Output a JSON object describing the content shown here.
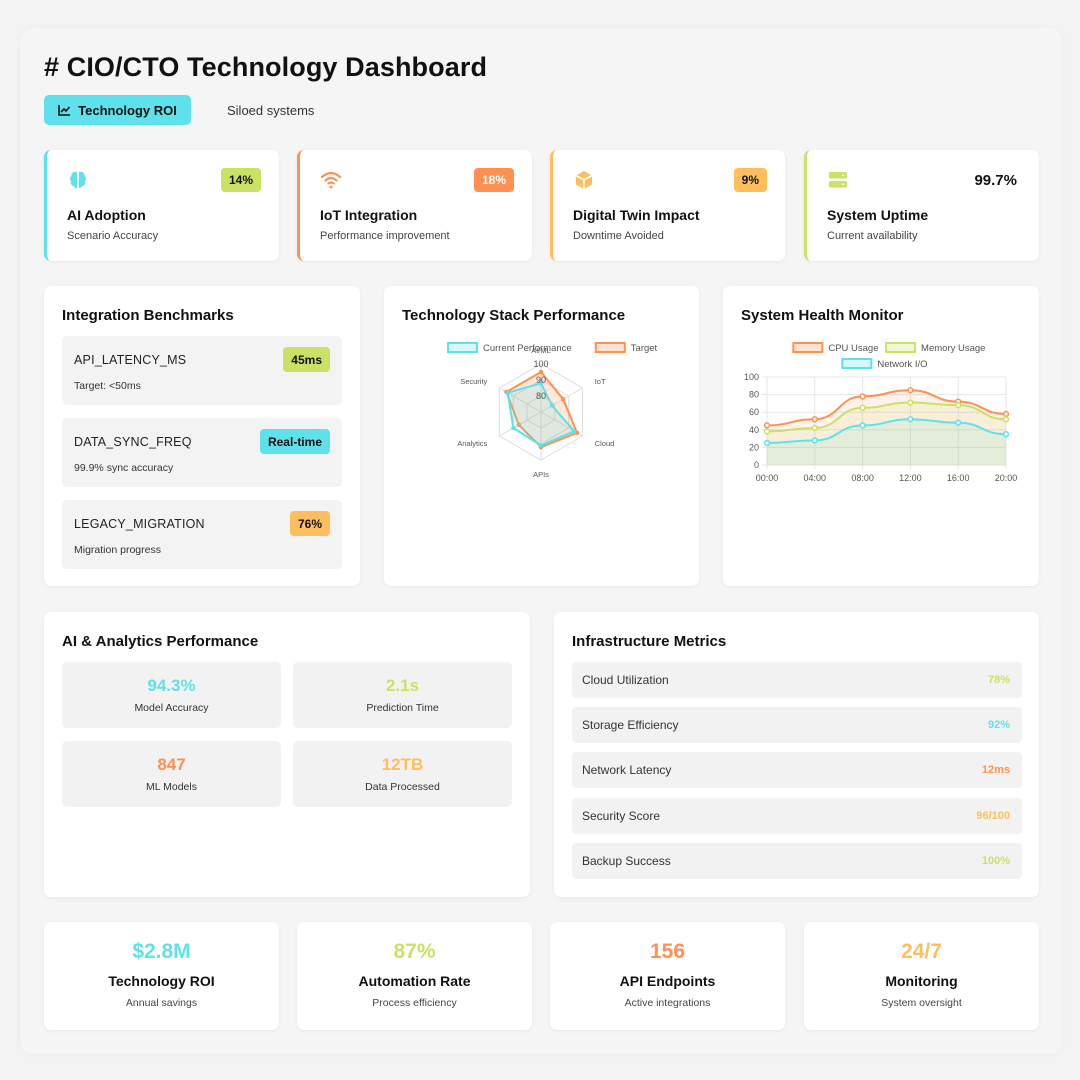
{
  "header": {
    "title": "# CIO/CTO Technology Dashboard",
    "tabs": [
      {
        "label": "Technology ROI",
        "icon": "line-chart-icon",
        "active": true
      },
      {
        "label": "Siloed systems",
        "active": false
      }
    ]
  },
  "kpis": [
    {
      "title": "AI Adoption",
      "subtitle": "Scenario Accuracy",
      "value": "14%",
      "icon": "brain-icon",
      "color": "#5ee1ea",
      "badge_color": "#c9e265"
    },
    {
      "title": "IoT Integration",
      "subtitle": "Performance improvement",
      "value": "18%",
      "icon": "wifi-icon",
      "color": "#ff9050",
      "badge_color": "#ff9050"
    },
    {
      "title": "Digital Twin Impact",
      "subtitle": "Downtime Avoided",
      "value": "9%",
      "icon": "cube-icon",
      "color": "#ffbe5c",
      "badge_color": "#ffbe5c"
    },
    {
      "title": "System Uptime",
      "subtitle": "Current availability",
      "value": "99.7%",
      "icon": "server-icon",
      "color": "#c9e265"
    }
  ],
  "benchmarks": {
    "title": "Integration Benchmarks",
    "items": [
      {
        "name": "API_LATENCY_MS",
        "sub": "Target: <50ms",
        "badge": "45ms",
        "badge_color": "#c9e265"
      },
      {
        "name": "DATA_SYNC_FREQ",
        "sub": "99.9% sync accuracy",
        "badge": "Real-time",
        "badge_color": "#5ee1ea"
      },
      {
        "name": "LEGACY_MIGRATION",
        "sub": "Migration progress",
        "badge": "76%",
        "badge_color": "#ffbe5c"
      }
    ]
  },
  "radar_panel": {
    "title": "Technology Stack Performance"
  },
  "health_panel": {
    "title": "System Health Monitor"
  },
  "chart_data": [
    {
      "type": "radar",
      "axes": [
        "AI/ML",
        "IoT",
        "Cloud",
        "APIs",
        "Analytics",
        "Security"
      ],
      "r_ticks": [
        80,
        90,
        100
      ],
      "r_range": [
        70,
        100
      ],
      "legend_position": "top",
      "series": [
        {
          "name": "Current Performance",
          "color": "#5ee1ea",
          "values": [
            88,
            78,
            94,
            91,
            90,
            94
          ]
        },
        {
          "name": "Target",
          "color": "#ff9050",
          "values": [
            95,
            86,
            96,
            92,
            86,
            95
          ]
        }
      ]
    },
    {
      "type": "line",
      "x": [
        "00:00",
        "04:00",
        "08:00",
        "12:00",
        "16:00",
        "20:00"
      ],
      "ylim": [
        0,
        100
      ],
      "yticks": [
        0,
        20,
        40,
        60,
        80,
        100
      ],
      "grid": true,
      "area_fill": true,
      "legend_position": "top",
      "series": [
        {
          "name": "CPU Usage",
          "color": "#ff9050",
          "values": [
            45,
            52,
            78,
            85,
            72,
            58
          ]
        },
        {
          "name": "Memory Usage",
          "color": "#c9e265",
          "values": [
            38,
            42,
            65,
            71,
            68,
            52
          ]
        },
        {
          "name": "Network I/O",
          "color": "#5ee1ea",
          "values": [
            25,
            28,
            45,
            52,
            48,
            35
          ]
        }
      ]
    }
  ],
  "ai": {
    "title": "AI & Analytics Performance",
    "items": [
      {
        "value": "94.3%",
        "label": "Model Accuracy",
        "color": "#5ee1ea"
      },
      {
        "value": "2.1s",
        "label": "Prediction Time",
        "color": "#c9e265"
      },
      {
        "value": "847",
        "label": "ML Models",
        "color": "#ff9050"
      },
      {
        "value": "12TB",
        "label": "Data Processed",
        "color": "#ffbe5c"
      }
    ]
  },
  "infra": {
    "title": "Infrastructure Metrics",
    "items": [
      {
        "label": "Cloud Utilization",
        "value": "78%",
        "color": "#c9e265"
      },
      {
        "label": "Storage Efficiency",
        "value": "92%",
        "color": "#5ee1ea"
      },
      {
        "label": "Network Latency",
        "value": "12ms",
        "color": "#ff9050"
      },
      {
        "label": "Security Score",
        "value": "96/100",
        "color": "#ffbe5c"
      },
      {
        "label": "Backup Success",
        "value": "100%",
        "color": "#c9e265"
      }
    ]
  },
  "bottom": [
    {
      "value": "$2.8M",
      "label": "Technology ROI",
      "sub": "Annual savings",
      "color": "#5ee1ea"
    },
    {
      "value": "87%",
      "label": "Automation Rate",
      "sub": "Process efficiency",
      "color": "#c9e265"
    },
    {
      "value": "156",
      "label": "API Endpoints",
      "sub": "Active integrations",
      "color": "#ff9050"
    },
    {
      "value": "24/7",
      "label": "Monitoring",
      "sub": "System oversight",
      "color": "#ffbe5c"
    }
  ]
}
